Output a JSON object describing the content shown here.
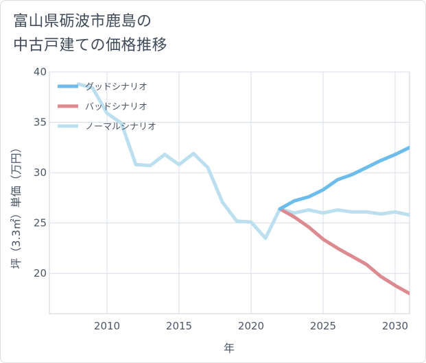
{
  "title_line1": "富山県砺波市鹿島の",
  "title_line2": "中古戸建ての価格推移",
  "chart_data": {
    "type": "line",
    "xlabel": "年",
    "ylabel": "坪（3.3㎡）単価（万円）",
    "xlim": [
      2006,
      2031
    ],
    "ylim": [
      16,
      40
    ],
    "x_ticks": [
      2010,
      2015,
      2020,
      2025,
      2030
    ],
    "y_ticks": [
      20,
      25,
      30,
      35,
      40
    ],
    "grid": true,
    "legend_position": "top-left",
    "series": [
      {
        "name": "グッドシナリオ",
        "color": "#6cbcec",
        "x": [
          2022,
          2023,
          2024,
          2025,
          2026,
          2027,
          2028,
          2029,
          2030,
          2031
        ],
        "y": [
          26.4,
          27.2,
          27.6,
          28.3,
          29.3,
          29.8,
          30.5,
          31.2,
          31.8,
          32.5
        ]
      },
      {
        "name": "バッドシナリオ",
        "color": "#dc8a90",
        "x": [
          2022,
          2023,
          2024,
          2025,
          2026,
          2027,
          2028,
          2029,
          2030,
          2031
        ],
        "y": [
          26.4,
          25.6,
          24.6,
          23.4,
          22.5,
          21.7,
          20.9,
          19.7,
          18.8,
          18.0
        ]
      },
      {
        "name": "ノーマルシナリオ",
        "color": "#bcdfef",
        "x": [
          2008,
          2009,
          2010,
          2011,
          2012,
          2013,
          2014,
          2015,
          2016,
          2017,
          2018,
          2019,
          2020,
          2021,
          2022,
          2023,
          2024,
          2025,
          2026,
          2027,
          2028,
          2029,
          2030,
          2031
        ],
        "y": [
          38.8,
          38.4,
          35.9,
          34.9,
          30.8,
          30.7,
          31.8,
          30.8,
          31.9,
          30.5,
          27.1,
          25.2,
          25.1,
          23.5,
          26.4,
          26.0,
          26.3,
          26.0,
          26.3,
          26.1,
          26.1,
          25.9,
          26.1,
          25.8
        ]
      }
    ]
  }
}
